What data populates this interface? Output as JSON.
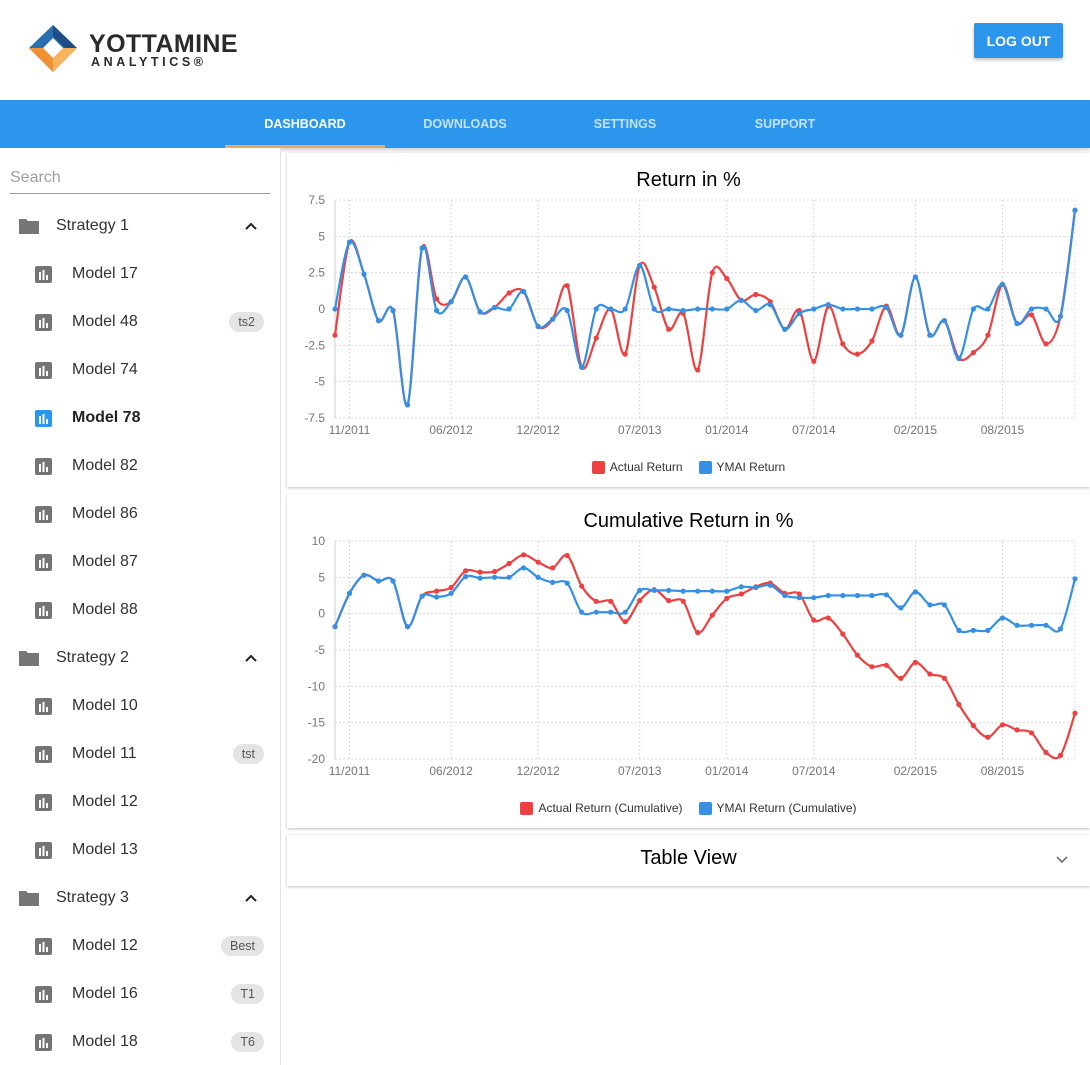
{
  "brand": {
    "name": "YOTTAMINE",
    "sub": "ANALYTICS®"
  },
  "header": {
    "logout_label": "LOG OUT"
  },
  "nav": {
    "tabs": [
      "DASHBOARD",
      "DOWNLOADS",
      "SETTINGS",
      "SUPPORT"
    ],
    "active": "DASHBOARD"
  },
  "sidebar": {
    "search_placeholder": "Search",
    "strategies": [
      {
        "name": "Strategy 1",
        "expanded": true,
        "models": [
          {
            "name": "Model 17",
            "badge": ""
          },
          {
            "name": "Model 48",
            "badge": "ts2"
          },
          {
            "name": "Model 74",
            "badge": ""
          },
          {
            "name": "Model 78",
            "badge": "",
            "selected": true
          },
          {
            "name": "Model 82",
            "badge": ""
          },
          {
            "name": "Model 86",
            "badge": ""
          },
          {
            "name": "Model 87",
            "badge": ""
          },
          {
            "name": "Model 88",
            "badge": ""
          }
        ]
      },
      {
        "name": "Strategy 2",
        "expanded": true,
        "models": [
          {
            "name": "Model 10",
            "badge": ""
          },
          {
            "name": "Model 11",
            "badge": "tst"
          },
          {
            "name": "Model 12",
            "badge": ""
          },
          {
            "name": "Model 13",
            "badge": ""
          }
        ]
      },
      {
        "name": "Strategy 3",
        "expanded": true,
        "models": [
          {
            "name": "Model 12",
            "badge": "Best"
          },
          {
            "name": "Model 16",
            "badge": "T1"
          },
          {
            "name": "Model 18",
            "badge": "T6"
          }
        ]
      }
    ]
  },
  "colors": {
    "primary": "#2b96ec",
    "accent": "#f2a55e",
    "actual": "#ee4040",
    "ymai": "#3590e3"
  },
  "chart_data": [
    {
      "type": "line",
      "title": "Return in %",
      "x": [
        "10/2011",
        "11/2011",
        "12/2011",
        "01/2012",
        "02/2012",
        "03/2012",
        "04/2012",
        "05/2012",
        "06/2012",
        "07/2012",
        "08/2012",
        "09/2012",
        "10/2012",
        "11/2012",
        "12/2012",
        "01/2013",
        "02/2013",
        "03/2013",
        "04/2013",
        "05/2013",
        "06/2013",
        "07/2013",
        "08/2013",
        "09/2013",
        "10/2013",
        "11/2013",
        "12/2013",
        "01/2014",
        "02/2014",
        "03/2014",
        "04/2014",
        "05/2014",
        "06/2014",
        "07/2014",
        "08/2014",
        "09/2014",
        "10/2014",
        "11/2014",
        "12/2014",
        "01/2015",
        "02/2015",
        "03/2015",
        "04/2015",
        "05/2015",
        "06/2015",
        "07/2015",
        "08/2015",
        "09/2015",
        "10/2015",
        "11/2015",
        "12/2015",
        "01/2016"
      ],
      "x_ticks": [
        "11/2011",
        "06/2012",
        "12/2012",
        "07/2013",
        "01/2014",
        "07/2014",
        "02/2015",
        "08/2015"
      ],
      "ylim": [
        -7.5,
        7.5
      ],
      "y_ticks": [
        "7.5",
        "5",
        "2.5",
        "0",
        "-2.5",
        "-5",
        "-7.5"
      ],
      "legend": "bottom-center",
      "grid": true,
      "series": [
        {
          "name": "Actual Return",
          "color": "#ee4040",
          "values": [
            -1.8,
            4.6,
            2.4,
            -0.8,
            -0.1,
            -6.6,
            4.2,
            0.7,
            0.5,
            2.2,
            -0.2,
            0.1,
            1.1,
            1.2,
            -1.2,
            -0.7,
            1.6,
            -4.0,
            -2.0,
            0.0,
            -3.1,
            3.0,
            1.5,
            -1.4,
            -0.3,
            -4.2,
            2.5,
            2.1,
            0.6,
            1.0,
            0.5,
            -1.4,
            -0.1,
            -3.6,
            0.2,
            -2.4,
            -3.1,
            -2.2,
            0.2,
            -1.8,
            2.2,
            -1.8,
            -0.8,
            -3.4,
            -3.0,
            -1.8,
            1.7,
            -1.0,
            -0.4,
            -2.4,
            -0.5,
            6.8
          ]
        },
        {
          "name": "YMAI Return",
          "color": "#3590e3",
          "values": [
            0.0,
            4.6,
            2.4,
            -0.8,
            -0.1,
            -6.6,
            4.2,
            -0.1,
            0.5,
            2.2,
            -0.2,
            0.1,
            0.0,
            1.2,
            -1.2,
            -0.7,
            -0.1,
            -4.0,
            0.0,
            0.0,
            0.0,
            3.0,
            0.0,
            0.0,
            -0.1,
            0.0,
            0.0,
            0.0,
            0.6,
            -0.1,
            0.3,
            -1.4,
            -0.3,
            0.0,
            0.3,
            0.0,
            0.0,
            0.0,
            0.1,
            -1.8,
            2.2,
            -1.8,
            -0.8,
            -3.4,
            0.0,
            0.0,
            1.7,
            -1.0,
            0.0,
            0.0,
            -0.5,
            6.8
          ]
        }
      ]
    },
    {
      "type": "line",
      "title": "Cumulative Return in %",
      "x": [
        "10/2011",
        "11/2011",
        "12/2011",
        "01/2012",
        "02/2012",
        "03/2012",
        "04/2012",
        "05/2012",
        "06/2012",
        "07/2012",
        "08/2012",
        "09/2012",
        "10/2012",
        "11/2012",
        "12/2012",
        "01/2013",
        "02/2013",
        "03/2013",
        "04/2013",
        "05/2013",
        "06/2013",
        "07/2013",
        "08/2013",
        "09/2013",
        "10/2013",
        "11/2013",
        "12/2013",
        "01/2014",
        "02/2014",
        "03/2014",
        "04/2014",
        "05/2014",
        "06/2014",
        "07/2014",
        "08/2014",
        "09/2014",
        "10/2014",
        "11/2014",
        "12/2014",
        "01/2015",
        "02/2015",
        "03/2015",
        "04/2015",
        "05/2015",
        "06/2015",
        "07/2015",
        "08/2015",
        "09/2015",
        "10/2015",
        "11/2015",
        "12/2015",
        "01/2016"
      ],
      "x_ticks": [
        "11/2011",
        "06/2012",
        "12/2012",
        "07/2013",
        "01/2014",
        "07/2014",
        "02/2015",
        "08/2015"
      ],
      "ylim": [
        -20,
        10
      ],
      "y_ticks": [
        "10",
        "5",
        "0",
        "-5",
        "-10",
        "-15",
        "-20"
      ],
      "legend": "bottom-center",
      "grid": true,
      "series": [
        {
          "name": "Actual Return (Cumulative)",
          "color": "#ee4040",
          "values": [
            -1.8,
            2.8,
            5.3,
            4.5,
            4.5,
            -1.8,
            2.4,
            3.1,
            3.6,
            5.9,
            5.7,
            5.8,
            6.9,
            8.1,
            7.1,
            6.3,
            8.0,
            3.8,
            1.7,
            1.7,
            -1.1,
            1.8,
            3.3,
            1.8,
            1.7,
            -2.6,
            -0.2,
            2.1,
            2.7,
            3.7,
            4.2,
            2.8,
            2.7,
            -0.9,
            -0.6,
            -2.8,
            -5.7,
            -7.3,
            -7.1,
            -8.9,
            -6.7,
            -8.3,
            -8.9,
            -12.5,
            -15.4,
            -17.0,
            -15.3,
            -16.0,
            -16.4,
            -19.1,
            -19.5,
            -13.7
          ]
        },
        {
          "name": "YMAI Return (Cumulative)",
          "color": "#3590e3",
          "values": [
            -1.8,
            2.8,
            5.3,
            4.5,
            4.5,
            -1.8,
            2.4,
            2.3,
            2.8,
            5.1,
            4.9,
            5.0,
            5.0,
            6.3,
            5.0,
            4.3,
            4.2,
            0.2,
            0.2,
            0.2,
            0.2,
            3.2,
            3.2,
            3.2,
            3.1,
            3.1,
            3.1,
            3.1,
            3.7,
            3.6,
            3.9,
            2.5,
            2.2,
            2.2,
            2.5,
            2.5,
            2.5,
            2.5,
            2.6,
            0.8,
            3.0,
            1.2,
            1.2,
            -2.3,
            -2.3,
            -2.3,
            -0.6,
            -1.6,
            -1.6,
            -1.6,
            -2.1,
            4.8
          ]
        }
      ]
    }
  ],
  "table_view": {
    "title": "Table View"
  }
}
